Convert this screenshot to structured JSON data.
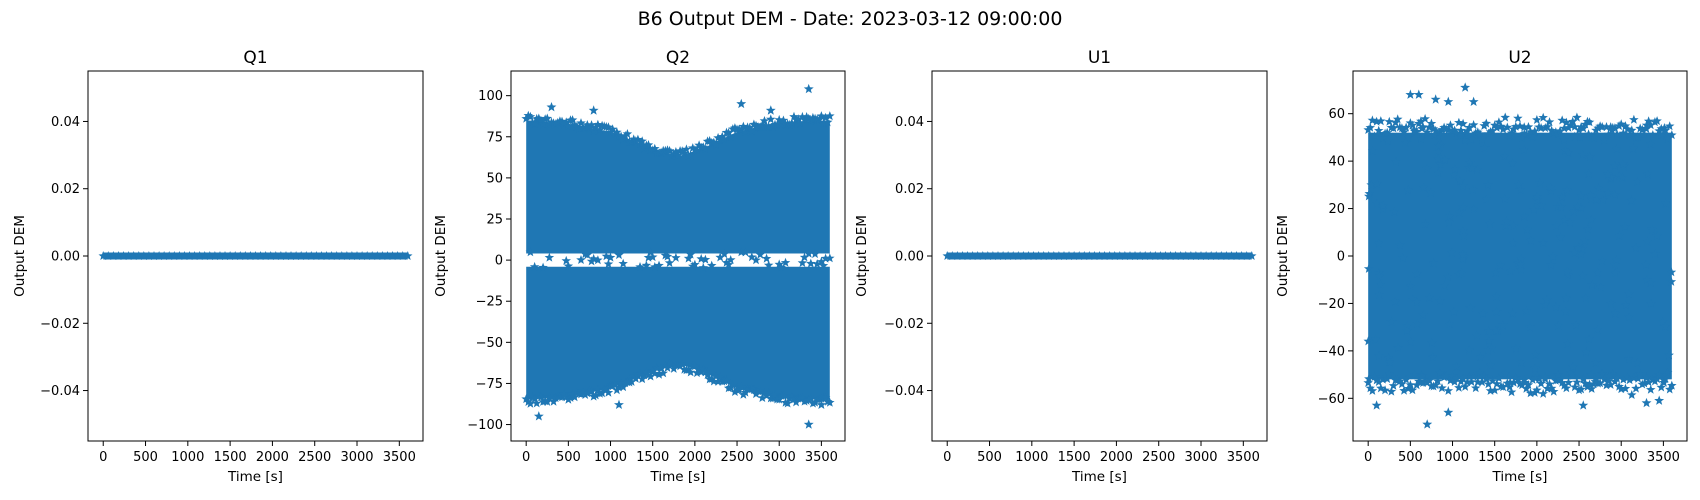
{
  "figure": {
    "suptitle": "B6 Output DEM - Date: 2023-03-12 09:00:00",
    "marker_color": "#1f77b4",
    "marker": "star"
  },
  "chart_data": [
    {
      "type": "scatter",
      "title": "Q1",
      "xlabel": "Time [s]",
      "ylabel": "Output DEM",
      "xlim": [
        -180,
        3780
      ],
      "ylim": [
        -0.055,
        0.055
      ],
      "xticks": [
        0,
        500,
        1000,
        1500,
        2000,
        2500,
        3000,
        3500
      ],
      "yticks": [
        -0.04,
        -0.02,
        0.0,
        0.02,
        0.04
      ],
      "ytick_labels": [
        "−0.04",
        "−0.02",
        "0.00",
        "0.02",
        "0.04"
      ],
      "x_range": [
        0,
        3600
      ],
      "pattern": "constant",
      "value": 0.0
    },
    {
      "type": "scatter",
      "title": "Q2",
      "xlabel": "Time [s]",
      "ylabel": "Output DEM",
      "xlim": [
        -180,
        3780
      ],
      "ylim": [
        -110,
        115
      ],
      "xticks": [
        0,
        500,
        1000,
        1500,
        2000,
        2500,
        3000,
        3500
      ],
      "yticks": [
        -100,
        -75,
        -50,
        -25,
        0,
        25,
        50,
        75,
        100
      ],
      "ytick_labels": [
        "−100",
        "−75",
        "−50",
        "−25",
        "0",
        "25",
        "50",
        "75",
        "100"
      ],
      "x_range": [
        0,
        3600
      ],
      "pattern": "bimodal",
      "envelope_x": [
        0,
        500,
        1000,
        1500,
        1800,
        2100,
        2500,
        3000,
        3600
      ],
      "envelope_amp": [
        85,
        83,
        78,
        68,
        63,
        68,
        78,
        84,
        85
      ],
      "gap_half": 4,
      "outliers": [
        [
          3350,
          104
        ],
        [
          2550,
          95
        ],
        [
          2900,
          91
        ],
        [
          800,
          91
        ],
        [
          300,
          93
        ],
        [
          3350,
          -100
        ],
        [
          150,
          -95
        ],
        [
          1100,
          -88
        ],
        [
          3500,
          -88
        ]
      ]
    },
    {
      "type": "scatter",
      "title": "U1",
      "xlabel": "Time [s]",
      "ylabel": "Output DEM",
      "xlim": [
        -180,
        3780
      ],
      "ylim": [
        -0.055,
        0.055
      ],
      "xticks": [
        0,
        500,
        1000,
        1500,
        2000,
        2500,
        3000,
        3500
      ],
      "yticks": [
        -0.04,
        -0.02,
        0.0,
        0.02,
        0.04
      ],
      "ytick_labels": [
        "−0.04",
        "−0.02",
        "0.00",
        "0.02",
        "0.04"
      ],
      "x_range": [
        0,
        3600
      ],
      "pattern": "constant",
      "value": 0.0
    },
    {
      "type": "scatter",
      "title": "U2",
      "xlabel": "Time [s]",
      "ylabel": "Output DEM",
      "xlim": [
        -180,
        3780
      ],
      "ylim": [
        -78,
        78
      ],
      "xticks": [
        0,
        500,
        1000,
        1500,
        2000,
        2500,
        3000,
        3500
      ],
      "yticks": [
        -60,
        -40,
        -20,
        0,
        20,
        40,
        60
      ],
      "ytick_labels": [
        "−60",
        "−40",
        "−20",
        "0",
        "20",
        "40",
        "60"
      ],
      "x_range": [
        0,
        3600
      ],
      "pattern": "uniform",
      "amp": 54,
      "outliers": [
        [
          1150,
          71
        ],
        [
          500,
          68
        ],
        [
          600,
          68
        ],
        [
          800,
          66
        ],
        [
          950,
          65
        ],
        [
          1250,
          65
        ],
        [
          700,
          -71
        ],
        [
          950,
          -66
        ],
        [
          100,
          -63
        ],
        [
          2550,
          -63
        ],
        [
          3300,
          -62
        ],
        [
          3450,
          -61
        ]
      ]
    }
  ]
}
